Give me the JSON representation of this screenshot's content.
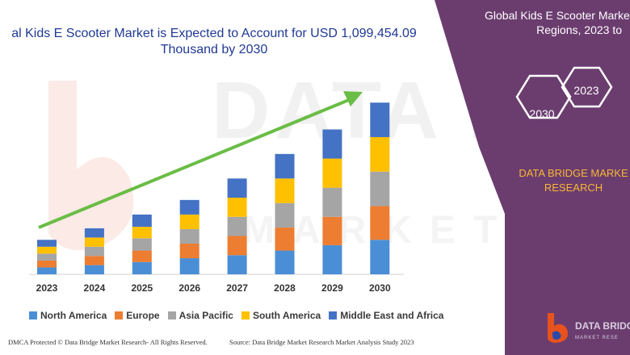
{
  "chart_data": {
    "type": "bar",
    "stacked": true,
    "title": "al Kids E Scooter Market is Expected to Account for USD 1,099,454.09 Thousand by 2030",
    "categories": [
      "2023",
      "2024",
      "2025",
      "2026",
      "2027",
      "2028",
      "2029",
      "2030"
    ],
    "series": [
      {
        "name": "North America",
        "color": "#4a8fd6",
        "values": [
          9,
          12,
          16,
          21,
          25,
          31,
          38,
          45
        ]
      },
      {
        "name": "Europe",
        "color": "#ed7d31",
        "values": [
          9,
          12,
          15,
          19,
          25,
          30,
          37,
          44
        ]
      },
      {
        "name": "Asia Pacific",
        "color": "#a5a5a5",
        "values": [
          9,
          12,
          16,
          19,
          25,
          32,
          38,
          45
        ]
      },
      {
        "name": "South America",
        "color": "#ffc000",
        "values": [
          9,
          12,
          15,
          19,
          25,
          32,
          38,
          45
        ]
      },
      {
        "name": "Middle East and Africa",
        "color": "#4472c4",
        "values": [
          9,
          12,
          16,
          19,
          25,
          32,
          38,
          45
        ]
      }
    ],
    "ylim": [
      0,
      240
    ],
    "grid": false,
    "legend": "bottom"
  },
  "trend_arrow_color": "#6abd45",
  "side_panel": {
    "title_line1": "Global Kids E Scooter Marke",
    "title_line2": "Regions, 2023 to",
    "hex_start": "2023",
    "hex_end": "2030",
    "brand_line1": "DATA BRIDGE MARKE",
    "brand_line2": "RESEARCH",
    "panel_color": "#6b3d6f",
    "brand_color": "#f7b733"
  },
  "watermark": {
    "line1": "DATA BRIDGE",
    "line2": "MARKET RESE"
  },
  "logo": {
    "name": "DATA BRIDGE",
    "tagline": "MARKET RESE"
  },
  "footer": {
    "left": "DMCA Protected © Data Bridge Market Research- All Rights Reserved.",
    "right": "Source: Data Bridge Market Research Market Analysis Study 2023"
  }
}
